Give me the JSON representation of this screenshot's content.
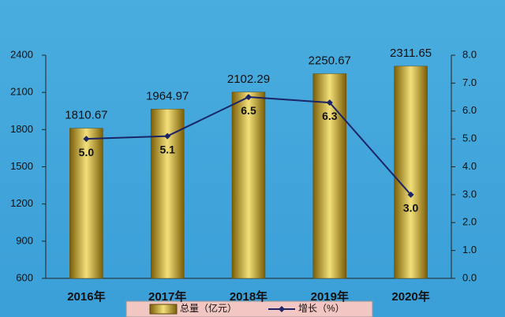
{
  "chart_data": {
    "type": "bar",
    "categories": [
      "2016年",
      "2017年",
      "2018年",
      "2019年",
      "2020年"
    ],
    "series": [
      {
        "name": "总量（亿元）",
        "type": "bar",
        "color": "#c9a82a",
        "values": [
          1810.67,
          1964.97,
          2102.29,
          2250.67,
          2311.65
        ]
      },
      {
        "name": "增长（%）",
        "type": "line",
        "axis": "y2",
        "color": "#1b2466",
        "values": [
          5.0,
          5.1,
          6.5,
          6.3,
          3.0
        ],
        "value_labels": [
          "5.0",
          "5.1",
          "6.5",
          "6.3",
          "3.0"
        ]
      }
    ],
    "ylim": [
      600,
      2400
    ],
    "yticks": [
      600,
      900,
      1200,
      1500,
      1800,
      2100,
      2400
    ],
    "y2lim": [
      0,
      8
    ],
    "y2ticks": [
      {
        "value": 0,
        "label": "0.0"
      },
      {
        "value": 1,
        "label": "1.0"
      },
      {
        "value": 2,
        "label": "2.0"
      },
      {
        "value": 3,
        "label": "3.0"
      },
      {
        "value": 4,
        "label": "4.0"
      },
      {
        "value": 5,
        "label": "5.0"
      },
      {
        "value": 6,
        "label": "6.0"
      },
      {
        "value": 7,
        "label": "7.0"
      },
      {
        "value": 8,
        "label": "8.0"
      }
    ],
    "grid": false,
    "legend": "bottom"
  }
}
